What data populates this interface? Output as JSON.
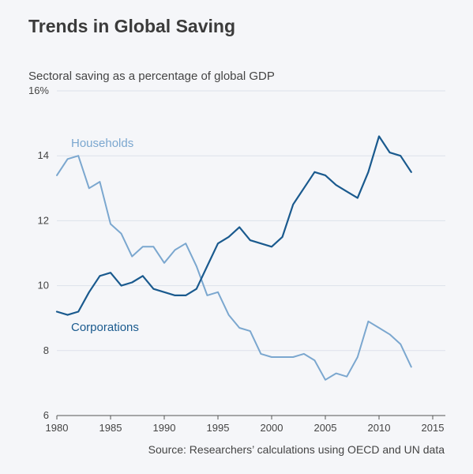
{
  "header": {
    "title": "Trends in Global Saving",
    "subtitle": "Sectoral saving as a percentage of global GDP"
  },
  "footer": {
    "source": "Source: Researchers’ calculations using OECD and UN data"
  },
  "chart_data": {
    "type": "line",
    "title": "Trends in Global Saving",
    "subtitle": "Sectoral saving as a percentage of global GDP",
    "xlabel": "",
    "ylabel": "",
    "xlim": [
      1980,
      2015
    ],
    "ylim": [
      6,
      16
    ],
    "xticks": [
      1980,
      1985,
      1990,
      1995,
      2000,
      2005,
      2010,
      2015
    ],
    "yticks": [
      6,
      8,
      10,
      12,
      14,
      16
    ],
    "ytick_labels": [
      "6",
      "8",
      "10",
      "12",
      "14",
      "16%"
    ],
    "grid": true,
    "legend": "inline labels",
    "x": [
      1980,
      1981,
      1982,
      1983,
      1984,
      1985,
      1986,
      1987,
      1988,
      1989,
      1990,
      1991,
      1992,
      1993,
      1994,
      1995,
      1996,
      1997,
      1998,
      1999,
      2000,
      2001,
      2002,
      2003,
      2004,
      2005,
      2006,
      2007,
      2008,
      2009,
      2010,
      2011,
      2012,
      2013
    ],
    "series": [
      {
        "name": "Households",
        "color": "#7ba7cf",
        "values": [
          13.4,
          13.9,
          14.0,
          13.0,
          13.2,
          11.9,
          11.6,
          10.9,
          11.2,
          11.2,
          10.7,
          11.1,
          11.3,
          10.6,
          9.7,
          9.8,
          9.1,
          8.7,
          8.6,
          7.9,
          7.8,
          7.8,
          7.8,
          7.9,
          7.7,
          7.1,
          7.3,
          7.2,
          7.8,
          8.9,
          8.7,
          8.5,
          8.2,
          7.5
        ]
      },
      {
        "name": "Corporations",
        "color": "#1a5a8e",
        "values": [
          9.2,
          9.1,
          9.2,
          9.8,
          10.3,
          10.4,
          10.0,
          10.1,
          10.3,
          9.9,
          9.8,
          9.7,
          9.7,
          9.9,
          10.6,
          11.3,
          11.5,
          11.8,
          11.4,
          11.3,
          11.2,
          11.5,
          12.5,
          13.0,
          13.5,
          13.4,
          13.1,
          12.9,
          12.7,
          13.5,
          14.6,
          14.1,
          14.0,
          13.5
        ]
      }
    ]
  }
}
